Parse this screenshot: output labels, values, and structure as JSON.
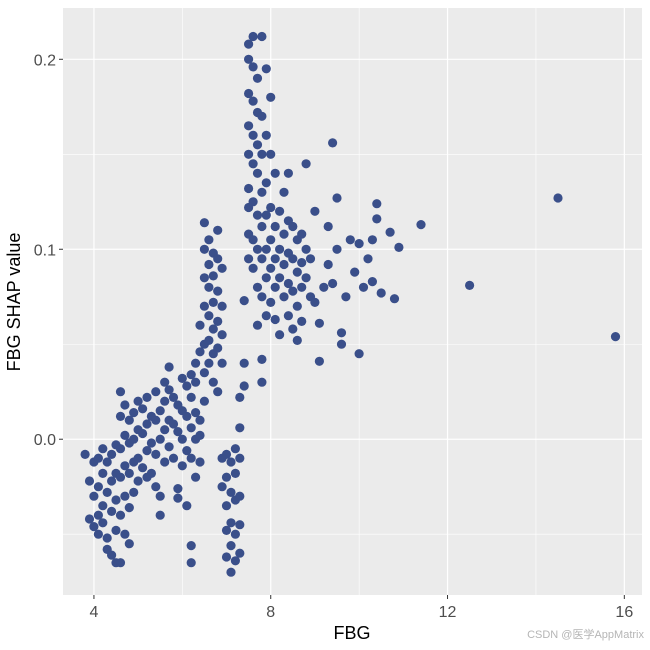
{
  "chart_data": {
    "type": "scatter",
    "title": "",
    "xlabel": "FBG",
    "ylabel": "FBG SHAP value",
    "xlim": [
      3.3,
      16.4
    ],
    "ylim": [
      -0.082,
      0.227
    ],
    "x_ticks": [
      4,
      8,
      12,
      16
    ],
    "x_tick_labels": [
      "4",
      "8",
      "12",
      "16"
    ],
    "y_ticks": [
      0.0,
      0.1,
      0.2
    ],
    "y_tick_labels": [
      "0.0",
      "0.1",
      "0.2"
    ],
    "grid": true,
    "background": "#ebebeb",
    "gridline_color": "#ffffff",
    "point_color": "#3a4f8a",
    "series": [
      {
        "points": [
          [
            3.8,
            -0.008
          ],
          [
            3.9,
            -0.022
          ],
          [
            3.9,
            -0.042
          ],
          [
            4.0,
            -0.012
          ],
          [
            4.0,
            -0.03
          ],
          [
            4.0,
            -0.046
          ],
          [
            4.1,
            -0.01
          ],
          [
            4.1,
            -0.025
          ],
          [
            4.1,
            -0.04
          ],
          [
            4.1,
            -0.05
          ],
          [
            4.2,
            -0.005
          ],
          [
            4.2,
            -0.018
          ],
          [
            4.2,
            -0.035
          ],
          [
            4.2,
            -0.044
          ],
          [
            4.3,
            -0.012
          ],
          [
            4.3,
            -0.028
          ],
          [
            4.3,
            -0.052
          ],
          [
            4.3,
            -0.058
          ],
          [
            4.4,
            -0.008
          ],
          [
            4.4,
            -0.022
          ],
          [
            4.4,
            -0.038
          ],
          [
            4.4,
            -0.061
          ],
          [
            4.5,
            -0.003
          ],
          [
            4.5,
            -0.018
          ],
          [
            4.5,
            -0.032
          ],
          [
            4.5,
            -0.048
          ],
          [
            4.5,
            -0.065
          ],
          [
            4.6,
            0.025
          ],
          [
            4.6,
            0.012
          ],
          [
            4.6,
            -0.005
          ],
          [
            4.6,
            -0.02
          ],
          [
            4.6,
            -0.04
          ],
          [
            4.6,
            -0.065
          ],
          [
            4.7,
            0.018
          ],
          [
            4.7,
            0.002
          ],
          [
            4.7,
            -0.014
          ],
          [
            4.7,
            -0.03
          ],
          [
            4.7,
            -0.05
          ],
          [
            4.8,
            0.01
          ],
          [
            4.8,
            -0.002
          ],
          [
            4.8,
            -0.018
          ],
          [
            4.8,
            -0.036
          ],
          [
            4.8,
            -0.055
          ],
          [
            4.9,
            0.014
          ],
          [
            4.9,
            0.0
          ],
          [
            4.9,
            -0.012
          ],
          [
            4.9,
            -0.028
          ],
          [
            5.0,
            0.02
          ],
          [
            5.0,
            0.005
          ],
          [
            5.0,
            -0.01
          ],
          [
            5.0,
            -0.022
          ],
          [
            5.1,
            0.016
          ],
          [
            5.1,
            0.003
          ],
          [
            5.1,
            -0.015
          ],
          [
            5.2,
            0.022
          ],
          [
            5.2,
            0.008
          ],
          [
            5.2,
            -0.006
          ],
          [
            5.2,
            -0.02
          ],
          [
            5.3,
            0.012
          ],
          [
            5.3,
            -0.002
          ],
          [
            5.3,
            -0.018
          ],
          [
            5.4,
            0.025
          ],
          [
            5.4,
            0.01
          ],
          [
            5.4,
            -0.008
          ],
          [
            5.4,
            -0.025
          ],
          [
            5.5,
            0.015
          ],
          [
            5.5,
            0.0
          ],
          [
            5.5,
            -0.03
          ],
          [
            5.5,
            -0.04
          ],
          [
            5.6,
            0.03
          ],
          [
            5.6,
            0.02
          ],
          [
            5.6,
            0.005
          ],
          [
            5.6,
            -0.012
          ],
          [
            5.7,
            0.038
          ],
          [
            5.7,
            0.026
          ],
          [
            5.7,
            0.01
          ],
          [
            5.7,
            -0.004
          ],
          [
            5.8,
            0.022
          ],
          [
            5.8,
            0.008
          ],
          [
            5.8,
            -0.01
          ],
          [
            5.9,
            0.018
          ],
          [
            5.9,
            0.004
          ],
          [
            5.9,
            -0.026
          ],
          [
            5.9,
            -0.031
          ],
          [
            6.0,
            0.032
          ],
          [
            6.0,
            0.015
          ],
          [
            6.0,
            0.0
          ],
          [
            6.0,
            -0.014
          ],
          [
            6.1,
            0.028
          ],
          [
            6.1,
            0.012
          ],
          [
            6.1,
            -0.006
          ],
          [
            6.1,
            -0.035
          ],
          [
            6.2,
            0.034
          ],
          [
            6.2,
            0.022
          ],
          [
            6.2,
            0.006
          ],
          [
            6.2,
            -0.01
          ],
          [
            6.2,
            -0.056
          ],
          [
            6.2,
            -0.065
          ],
          [
            6.3,
            0.04
          ],
          [
            6.3,
            0.03
          ],
          [
            6.3,
            0.014
          ],
          [
            6.3,
            0.0
          ],
          [
            6.3,
            -0.02
          ],
          [
            6.4,
            0.01
          ],
          [
            6.4,
            0.002
          ],
          [
            6.4,
            -0.012
          ],
          [
            6.4,
            0.046
          ],
          [
            6.4,
            0.06
          ],
          [
            6.5,
            0.1
          ],
          [
            6.5,
            0.085
          ],
          [
            6.5,
            0.07
          ],
          [
            6.5,
            0.05
          ],
          [
            6.5,
            0.035
          ],
          [
            6.5,
            0.02
          ],
          [
            6.5,
            0.114
          ],
          [
            6.6,
            0.105
          ],
          [
            6.6,
            0.092
          ],
          [
            6.6,
            0.08
          ],
          [
            6.6,
            0.065
          ],
          [
            6.6,
            0.052
          ],
          [
            6.6,
            0.04
          ],
          [
            6.7,
            0.098
          ],
          [
            6.7,
            0.086
          ],
          [
            6.7,
            0.072
          ],
          [
            6.7,
            0.058
          ],
          [
            6.7,
            0.045
          ],
          [
            6.7,
            0.03
          ],
          [
            6.8,
            0.11
          ],
          [
            6.8,
            0.095
          ],
          [
            6.8,
            0.078
          ],
          [
            6.8,
            0.062
          ],
          [
            6.8,
            0.048
          ],
          [
            6.8,
            0.025
          ],
          [
            6.9,
            0.09
          ],
          [
            6.9,
            0.07
          ],
          [
            6.9,
            0.055
          ],
          [
            6.9,
            0.04
          ],
          [
            6.9,
            -0.01
          ],
          [
            6.9,
            -0.025
          ],
          [
            7.0,
            -0.008
          ],
          [
            7.0,
            -0.02
          ],
          [
            7.0,
            -0.035
          ],
          [
            7.0,
            -0.048
          ],
          [
            7.0,
            -0.062
          ],
          [
            7.1,
            -0.012
          ],
          [
            7.1,
            -0.028
          ],
          [
            7.1,
            -0.044
          ],
          [
            7.1,
            -0.056
          ],
          [
            7.1,
            -0.07
          ],
          [
            7.2,
            -0.005
          ],
          [
            7.2,
            -0.018
          ],
          [
            7.2,
            -0.032
          ],
          [
            7.2,
            -0.05
          ],
          [
            7.2,
            -0.064
          ],
          [
            7.3,
            -0.01
          ],
          [
            7.3,
            -0.03
          ],
          [
            7.3,
            -0.045
          ],
          [
            7.3,
            -0.06
          ],
          [
            7.3,
            0.006
          ],
          [
            7.3,
            0.022
          ],
          [
            7.4,
            0.028
          ],
          [
            7.4,
            0.04
          ],
          [
            7.4,
            0.073
          ],
          [
            7.5,
            0.208
          ],
          [
            7.5,
            0.2
          ],
          [
            7.5,
            0.182
          ],
          [
            7.5,
            0.165
          ],
          [
            7.5,
            0.15
          ],
          [
            7.5,
            0.132
          ],
          [
            7.5,
            0.122
          ],
          [
            7.5,
            0.108
          ],
          [
            7.5,
            0.095
          ],
          [
            7.6,
            0.212
          ],
          [
            7.6,
            0.196
          ],
          [
            7.6,
            0.178
          ],
          [
            7.6,
            0.16
          ],
          [
            7.6,
            0.145
          ],
          [
            7.6,
            0.125
          ],
          [
            7.6,
            0.105
          ],
          [
            7.6,
            0.09
          ],
          [
            7.7,
            0.19
          ],
          [
            7.7,
            0.172
          ],
          [
            7.7,
            0.155
          ],
          [
            7.7,
            0.14
          ],
          [
            7.7,
            0.118
          ],
          [
            7.7,
            0.1
          ],
          [
            7.7,
            0.08
          ],
          [
            7.7,
            0.06
          ],
          [
            7.8,
            0.212
          ],
          [
            7.8,
            0.17
          ],
          [
            7.8,
            0.15
          ],
          [
            7.8,
            0.13
          ],
          [
            7.8,
            0.112
          ],
          [
            7.8,
            0.095
          ],
          [
            7.8,
            0.075
          ],
          [
            7.8,
            0.042
          ],
          [
            7.8,
            0.03
          ],
          [
            7.9,
            0.195
          ],
          [
            7.9,
            0.16
          ],
          [
            7.9,
            0.135
          ],
          [
            7.9,
            0.118
          ],
          [
            7.9,
            0.1
          ],
          [
            7.9,
            0.085
          ],
          [
            7.9,
            0.065
          ],
          [
            8.0,
            0.18
          ],
          [
            8.0,
            0.15
          ],
          [
            8.0,
            0.122
          ],
          [
            8.0,
            0.105
          ],
          [
            8.0,
            0.09
          ],
          [
            8.0,
            0.072
          ],
          [
            8.1,
            0.14
          ],
          [
            8.1,
            0.112
          ],
          [
            8.1,
            0.095
          ],
          [
            8.1,
            0.08
          ],
          [
            8.1,
            0.063
          ],
          [
            8.2,
            0.12
          ],
          [
            8.2,
            0.1
          ],
          [
            8.2,
            0.085
          ],
          [
            8.2,
            0.055
          ],
          [
            8.3,
            0.13
          ],
          [
            8.3,
            0.108
          ],
          [
            8.3,
            0.092
          ],
          [
            8.3,
            0.075
          ],
          [
            8.4,
            0.14
          ],
          [
            8.4,
            0.115
          ],
          [
            8.4,
            0.098
          ],
          [
            8.4,
            0.082
          ],
          [
            8.4,
            0.065
          ],
          [
            8.5,
            0.112
          ],
          [
            8.5,
            0.095
          ],
          [
            8.5,
            0.078
          ],
          [
            8.5,
            0.058
          ],
          [
            8.6,
            0.105
          ],
          [
            8.6,
            0.088
          ],
          [
            8.6,
            0.07
          ],
          [
            8.6,
            0.052
          ],
          [
            8.7,
            0.108
          ],
          [
            8.7,
            0.093
          ],
          [
            8.7,
            0.08
          ],
          [
            8.7,
            0.062
          ],
          [
            8.8,
            0.145
          ],
          [
            8.8,
            0.1
          ],
          [
            8.8,
            0.085
          ],
          [
            8.9,
            0.095
          ],
          [
            8.9,
            0.075
          ],
          [
            9.0,
            0.12
          ],
          [
            9.0,
            0.072
          ],
          [
            9.1,
            0.041
          ],
          [
            9.1,
            0.061
          ],
          [
            9.2,
            0.08
          ],
          [
            9.3,
            0.112
          ],
          [
            9.3,
            0.092
          ],
          [
            9.4,
            0.156
          ],
          [
            9.4,
            0.082
          ],
          [
            9.5,
            0.127
          ],
          [
            9.5,
            0.1
          ],
          [
            9.6,
            0.056
          ],
          [
            9.6,
            0.05
          ],
          [
            9.7,
            0.075
          ],
          [
            9.8,
            0.105
          ],
          [
            9.9,
            0.088
          ],
          [
            10.0,
            0.045
          ],
          [
            10.0,
            0.103
          ],
          [
            10.1,
            0.08
          ],
          [
            10.2,
            0.095
          ],
          [
            10.3,
            0.083
          ],
          [
            10.3,
            0.105
          ],
          [
            10.4,
            0.124
          ],
          [
            10.4,
            0.116
          ],
          [
            10.5,
            0.077
          ],
          [
            10.7,
            0.109
          ],
          [
            10.8,
            0.074
          ],
          [
            10.9,
            0.101
          ],
          [
            11.4,
            0.113
          ],
          [
            12.5,
            0.081
          ],
          [
            14.5,
            0.127
          ],
          [
            15.8,
            0.054
          ]
        ]
      }
    ]
  },
  "watermark": "CSDN @医学AppMatrix"
}
